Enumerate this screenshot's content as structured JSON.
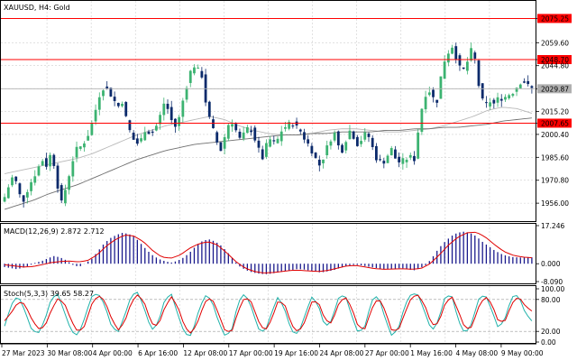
{
  "header": {
    "symbol_line": "XAUUSD, H4:  Gold"
  },
  "colors": {
    "bull": "#3cb371",
    "bear": "#0b2a6b",
    "level": "#ff0000",
    "current": "#b0b0b0",
    "ma_fast": "#b8b8b8",
    "ma_slow": "#707070",
    "macd_hist": "#1a1a8c",
    "signal": "#e00000",
    "stoch_main": "#20b2aa",
    "stoch_signal": "#e00000",
    "grid": "#cfcfcf"
  },
  "chart_data": [
    {
      "type": "candlestick",
      "title": "XAUUSD, H4:  Gold",
      "ylim": [
        1945,
        2086
      ],
      "y_ticks": [
        "2075.25",
        "2059.60",
        "2048.70",
        "2044.80",
        "2029.87",
        "2015.20",
        "2007.65",
        "2000.40",
        "1985.60",
        "1970.80",
        "1956.00"
      ],
      "x_ticks": [
        "27 Mar 2023",
        "30 Mar 08:00",
        "4 Apr 00:00",
        "6 Apr 16:00",
        "12 Apr 08:00",
        "17 Apr 00:00",
        "19 Apr 16:00",
        "24 Apr 08:00",
        "27 Apr 00:00",
        "1 May 16:00",
        "4 May 08:00",
        "9 May 00:00"
      ],
      "levels": [
        {
          "value": 2075.25,
          "label": "2075.25"
        },
        {
          "value": 2048.7,
          "label": "2048.70"
        },
        {
          "value": 2007.65,
          "label": "2007.65"
        }
      ],
      "current_price": {
        "value": 2029.87,
        "label": "2029.87"
      },
      "close_path": [
        1960,
        1968,
        1975,
        1962,
        1958,
        1966,
        1972,
        1978,
        1984,
        1980,
        1990,
        1972,
        1955,
        1966,
        1978,
        1990,
        1992,
        1996,
        2002,
        2012,
        2025,
        2031,
        2029,
        2024,
        2018,
        2022,
        2008,
        1999,
        1994,
        1997,
        2005,
        2000,
        2004,
        2012,
        2022,
        2014,
        2004,
        2010,
        2024,
        2036,
        2046,
        2042,
        2038,
        2015,
        2006,
        1996,
        1990,
        2002,
        2011,
        2004,
        1997,
        2001,
        2006,
        1999,
        1990,
        1984,
        1999,
        1994,
        1997,
        2004,
        2006,
        2008,
        2005,
        2002,
        1996,
        1992,
        1985,
        1980,
        1988,
        1996,
        2002,
        1992,
        1990,
        2004,
        2000,
        1994,
        1998,
        2002,
        1993,
        1985,
        1982,
        1984,
        1992,
        1985,
        1982,
        1984,
        1986,
        1984,
        2006,
        2024,
        2030,
        2024,
        2022,
        2045,
        2052,
        2058,
        2050,
        2040,
        2044,
        2055,
        2048,
        2026,
        2018,
        2022,
        2020,
        2024,
        2024,
        2026,
        2028,
        2032,
        2036,
        2032,
        2029.87
      ],
      "ma_fast_path": [
        1975,
        1977,
        1979,
        1981,
        1983,
        1985,
        1988,
        1992,
        1996,
        2000,
        2003,
        2006,
        2008,
        2010,
        2012,
        2010,
        2006,
        2003,
        2001,
        2000,
        2000,
        2001,
        2003,
        2004,
        2004,
        2003,
        2002,
        2002,
        2003,
        2004,
        2006,
        2009,
        2012,
        2016,
        2018,
        2017,
        2014
      ],
      "ma_slow_path": [
        1952,
        1955,
        1958,
        1962,
        1965,
        1968,
        1972,
        1976,
        1980,
        1984,
        1987,
        1990,
        1992,
        1994,
        1995,
        1996,
        1997,
        1998,
        1999,
        2000,
        2000,
        2001,
        2001,
        2002,
        2002,
        2002,
        2003,
        2003,
        2004,
        2004,
        2005,
        2005,
        2006,
        2007,
        2009,
        2010,
        2011
      ]
    },
    {
      "type": "bar",
      "title": "MACD(12,26,9) 2.872 2.712",
      "ylim": [
        -8.09,
        17.246
      ],
      "y_ticks": [
        "17.246",
        "0.000",
        "-8.090"
      ],
      "hist_path": [
        -1.5,
        -2.0,
        -2.5,
        -1.8,
        -0.8,
        0.5,
        1.2,
        2.5,
        3.5,
        2.8,
        1.5,
        -0.5,
        -1.5,
        0.2,
        2.0,
        5.5,
        9.0,
        11.5,
        13.0,
        14.0,
        13.5,
        12.0,
        9.0,
        6.0,
        3.5,
        2.0,
        1.0,
        0.5,
        1.5,
        3.0,
        5.5,
        8.5,
        10.5,
        11.0,
        10.0,
        8.0,
        5.0,
        1.5,
        -1.5,
        -3.0,
        -4.0,
        -4.5,
        -4.8,
        -4.5,
        -4.0,
        -3.5,
        -3.0,
        -2.5,
        -2.5,
        -3.0,
        -3.5,
        -4.0,
        -3.5,
        -3.0,
        -2.0,
        -1.0,
        -0.5,
        -0.5,
        -1.0,
        -1.5,
        -2.0,
        -2.5,
        -2.5,
        -2.2,
        -2.0,
        -2.5,
        -3.0,
        -2.0,
        -0.5,
        3.0,
        7.0,
        10.0,
        12.5,
        14.0,
        14.5,
        14.0,
        12.5,
        10.0,
        8.0,
        6.0,
        4.5,
        3.5,
        3.0,
        2.8,
        2.9,
        2.872
      ],
      "signal_path": [
        -0.5,
        -1.0,
        -1.5,
        -1.3,
        -0.5,
        0.5,
        1.0,
        1.2,
        0.8,
        1.5,
        4.0,
        8.0,
        11.0,
        13.0,
        12.5,
        10.0,
        6.0,
        3.0,
        2.5,
        4.0,
        7.0,
        9.0,
        10.0,
        8.5,
        5.0,
        1.0,
        -2.0,
        -3.5,
        -4.2,
        -4.0,
        -3.5,
        -3.0,
        -3.0,
        -3.3,
        -3.5,
        -3.0,
        -2.0,
        -1.0,
        -0.8,
        -1.5,
        -2.2,
        -2.5,
        -2.4,
        -2.3,
        -2.5,
        -2.2,
        0.0,
        4.0,
        8.5,
        12.0,
        14.0,
        14.3,
        12.0,
        8.5,
        5.5,
        3.8,
        3.0,
        2.712
      ]
    },
    {
      "type": "line",
      "title": "Stoch(5,3,3) 39.65 58.27",
      "ylim": [
        0,
        100
      ],
      "y_ticks": [
        "100.00",
        "80.00",
        "20.00",
        "0.00"
      ],
      "main_path": [
        30,
        70,
        88,
        60,
        25,
        15,
        40,
        82,
        90,
        55,
        20,
        12,
        45,
        85,
        92,
        70,
        30,
        18,
        50,
        88,
        94,
        60,
        22,
        35,
        80,
        90,
        50,
        15,
        12,
        55,
        88,
        80,
        40,
        12,
        20,
        75,
        92,
        65,
        25,
        18,
        55,
        86,
        60,
        20,
        15,
        50,
        85,
        70,
        28,
        40,
        82,
        90,
        50,
        16,
        30,
        78,
        88,
        45,
        12,
        25,
        70,
        92,
        88,
        55,
        20,
        40,
        85,
        88,
        40,
        15,
        35,
        80,
        90,
        60,
        25,
        45,
        85,
        88,
        55,
        39.65
      ],
      "signal_path": [
        40,
        55,
        75,
        72,
        45,
        25,
        28,
        60,
        82,
        72,
        40,
        18,
        30,
        70,
        88,
        78,
        45,
        22,
        38,
        75,
        90,
        72,
        35,
        30,
        65,
        85,
        65,
        28,
        15,
        40,
        75,
        84,
        55,
        22,
        18,
        58,
        85,
        75,
        40,
        20,
        42,
        78,
        70,
        32,
        18,
        38,
        75,
        76,
        42,
        35,
        70,
        86,
        65,
        28,
        25,
        62,
        84,
        60,
        22,
        22,
        55,
        85,
        88,
        68,
        32,
        35,
        72,
        86,
        58,
        25,
        28,
        65,
        86,
        72,
        38,
        40,
        72,
        86,
        68,
        58.27
      ]
    }
  ]
}
